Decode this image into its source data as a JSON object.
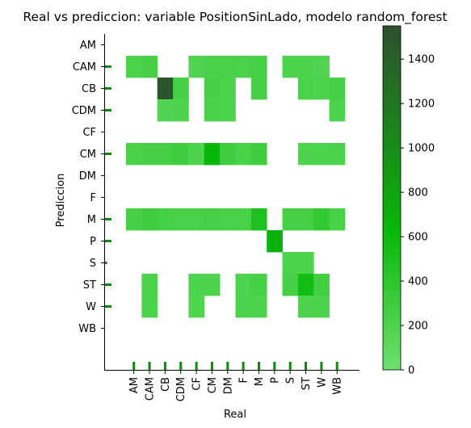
{
  "chart_data": {
    "type": "heatmap",
    "title": "Real vs prediccion: variable PositionSinLado, modelo random_forest",
    "xlabel": "Real",
    "ylabel": "Prediccion",
    "x_categories": [
      "AM",
      "CAM",
      "CB",
      "CDM",
      "CF",
      "CM",
      "DM",
      "F",
      "M",
      "P",
      "S",
      "ST",
      "W",
      "WB"
    ],
    "y_categories": [
      "AM",
      "CAM",
      "CB",
      "CDM",
      "CF",
      "CM",
      "DM",
      "F",
      "M",
      "P",
      "S",
      "ST",
      "W",
      "WB"
    ],
    "colorbar": {
      "min": 0,
      "max": 1550,
      "ticks": [
        0,
        200,
        400,
        600,
        800,
        1000,
        1200,
        1400
      ],
      "colors": [
        "#6fe06f",
        "#08b808",
        "#2f4f2f"
      ]
    },
    "marginal_y_counts": {
      "AM": 0,
      "CAM": 1,
      "CB": 1,
      "CDM": 1,
      "CF": 0,
      "CM": 1,
      "DM": 0,
      "F": 0,
      "M": 1,
      "P": 1,
      "S": 0.4,
      "ST": 1,
      "W": 1,
      "WB": 0
    },
    "marginal_x_counts": {
      "AM": 1,
      "CAM": 1,
      "CB": 1,
      "CDM": 1,
      "CF": 1,
      "CM": 1,
      "DM": 1,
      "F": 1,
      "M": 1,
      "P": 1,
      "S": 1,
      "ST": 1,
      "W": 1,
      "WB": 1
    },
    "cells": [
      {
        "x": "AM",
        "y": "CAM",
        "value": 200
      },
      {
        "x": "CAM",
        "y": "CAM",
        "value": 250
      },
      {
        "x": "CF",
        "y": "CAM",
        "value": 180
      },
      {
        "x": "CM",
        "y": "CAM",
        "value": 230
      },
      {
        "x": "DM",
        "y": "CAM",
        "value": 230
      },
      {
        "x": "F",
        "y": "CAM",
        "value": 220
      },
      {
        "x": "M",
        "y": "CAM",
        "value": 260
      },
      {
        "x": "S",
        "y": "CAM",
        "value": 200
      },
      {
        "x": "ST",
        "y": "CAM",
        "value": 200
      },
      {
        "x": "W",
        "y": "CAM",
        "value": 180
      },
      {
        "x": "CB",
        "y": "CB",
        "value": 1500
      },
      {
        "x": "CDM",
        "y": "CB",
        "value": 250
      },
      {
        "x": "CM",
        "y": "CB",
        "value": 250
      },
      {
        "x": "DM",
        "y": "CB",
        "value": 210
      },
      {
        "x": "M",
        "y": "CB",
        "value": 250
      },
      {
        "x": "ST",
        "y": "CB",
        "value": 220
      },
      {
        "x": "W",
        "y": "CB",
        "value": 200
      },
      {
        "x": "WB",
        "y": "CB",
        "value": 260
      },
      {
        "x": "CB",
        "y": "CDM",
        "value": 180
      },
      {
        "x": "CDM",
        "y": "CDM",
        "value": 200
      },
      {
        "x": "CM",
        "y": "CDM",
        "value": 230
      },
      {
        "x": "DM",
        "y": "CDM",
        "value": 200
      },
      {
        "x": "WB",
        "y": "CDM",
        "value": 200
      },
      {
        "x": "AM",
        "y": "CM",
        "value": 230
      },
      {
        "x": "CAM",
        "y": "CM",
        "value": 260
      },
      {
        "x": "CB",
        "y": "CM",
        "value": 260
      },
      {
        "x": "CDM",
        "y": "CM",
        "value": 280
      },
      {
        "x": "CF",
        "y": "CM",
        "value": 200
      },
      {
        "x": "CM",
        "y": "CM",
        "value": 620
      },
      {
        "x": "DM",
        "y": "CM",
        "value": 300
      },
      {
        "x": "F",
        "y": "CM",
        "value": 230
      },
      {
        "x": "M",
        "y": "CM",
        "value": 280
      },
      {
        "x": "ST",
        "y": "CM",
        "value": 200
      },
      {
        "x": "W",
        "y": "CM",
        "value": 200
      },
      {
        "x": "WB",
        "y": "CM",
        "value": 220
      },
      {
        "x": "AM",
        "y": "M",
        "value": 250
      },
      {
        "x": "CAM",
        "y": "M",
        "value": 300
      },
      {
        "x": "CB",
        "y": "M",
        "value": 260
      },
      {
        "x": "CDM",
        "y": "M",
        "value": 240
      },
      {
        "x": "CF",
        "y": "M",
        "value": 240
      },
      {
        "x": "CM",
        "y": "M",
        "value": 260
      },
      {
        "x": "DM",
        "y": "M",
        "value": 240
      },
      {
        "x": "F",
        "y": "M",
        "value": 240
      },
      {
        "x": "M",
        "y": "M",
        "value": 480
      },
      {
        "x": "S",
        "y": "M",
        "value": 260
      },
      {
        "x": "ST",
        "y": "M",
        "value": 260
      },
      {
        "x": "W",
        "y": "M",
        "value": 360
      },
      {
        "x": "WB",
        "y": "M",
        "value": 240
      },
      {
        "x": "P",
        "y": "P",
        "value": 680
      },
      {
        "x": "S",
        "y": "S",
        "value": 200
      },
      {
        "x": "ST",
        "y": "S",
        "value": 200
      },
      {
        "x": "CAM",
        "y": "ST",
        "value": 220
      },
      {
        "x": "CF",
        "y": "ST",
        "value": 200
      },
      {
        "x": "CM",
        "y": "ST",
        "value": 200
      },
      {
        "x": "F",
        "y": "ST",
        "value": 200
      },
      {
        "x": "M",
        "y": "ST",
        "value": 250
      },
      {
        "x": "S",
        "y": "ST",
        "value": 250
      },
      {
        "x": "ST",
        "y": "ST",
        "value": 560
      },
      {
        "x": "W",
        "y": "ST",
        "value": 270
      },
      {
        "x": "CAM",
        "y": "W",
        "value": 200
      },
      {
        "x": "CF",
        "y": "W",
        "value": 180
      },
      {
        "x": "F",
        "y": "W",
        "value": 200
      },
      {
        "x": "M",
        "y": "W",
        "value": 200
      },
      {
        "x": "ST",
        "y": "W",
        "value": 200
      },
      {
        "x": "W",
        "y": "W",
        "value": 200
      }
    ]
  }
}
